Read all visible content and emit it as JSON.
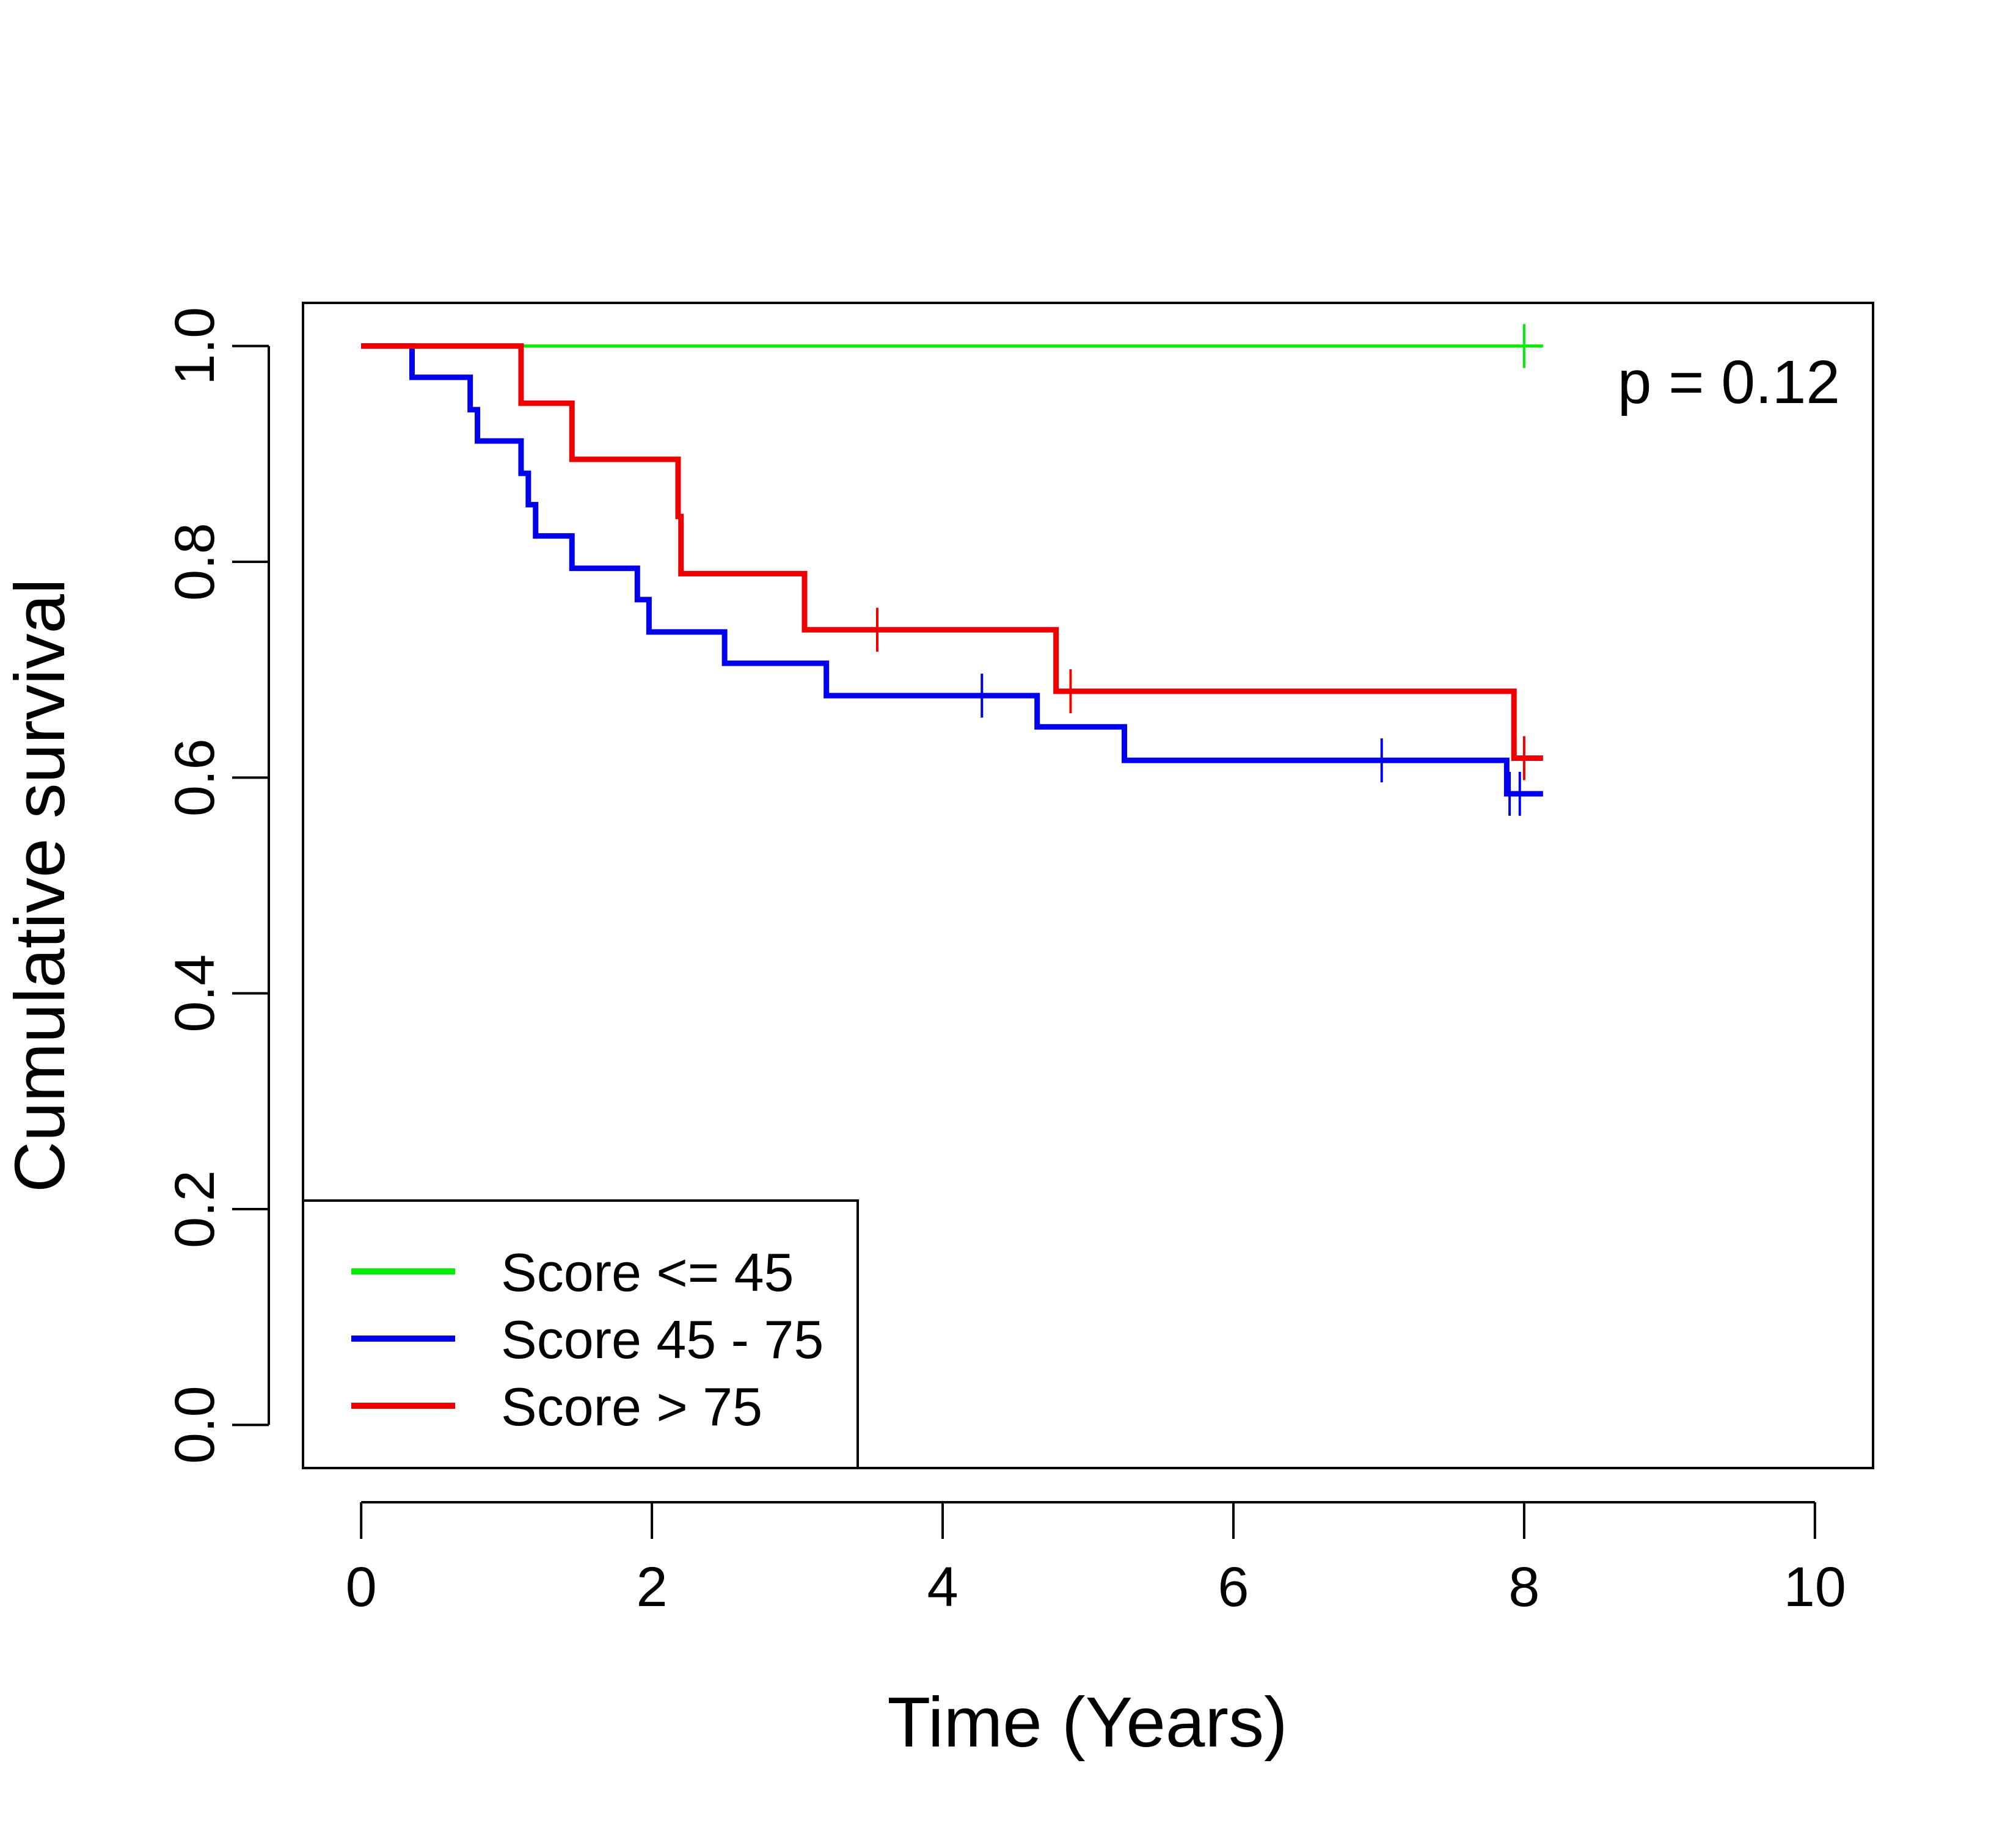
{
  "chart_data": {
    "type": "line",
    "subtype": "kaplan-meier step",
    "xlabel": "Time (Years)",
    "ylabel": "Cumulative survival",
    "xlim": [
      -0.4,
      10.4
    ],
    "ylim": [
      -0.04,
      1.04
    ],
    "xticks": [
      0,
      2,
      4,
      6,
      8,
      10
    ],
    "yticks": [
      0.0,
      0.2,
      0.4,
      0.6,
      0.8,
      1.0
    ],
    "xtick_labels": [
      "0",
      "2",
      "4",
      "6",
      "8",
      "10"
    ],
    "ytick_labels": [
      "0.0",
      "0.2",
      "0.4",
      "0.6",
      "0.8",
      "1.0"
    ],
    "annotation": "p = 0.12",
    "grid": false,
    "legend_position": "bottom-left",
    "series": [
      {
        "name": "Score <= 45",
        "color": "#00ee00",
        "steps": [
          [
            0.0,
            1.0
          ],
          [
            8.13,
            1.0
          ]
        ],
        "censored": [
          [
            8.0,
            1.0
          ]
        ]
      },
      {
        "name": "Score 45 - 75",
        "color": "#0000ee",
        "steps": [
          [
            0.0,
            1.0
          ],
          [
            0.35,
            0.971
          ],
          [
            0.75,
            0.941
          ],
          [
            0.8,
            0.912
          ],
          [
            1.1,
            0.882
          ],
          [
            1.15,
            0.853
          ],
          [
            1.2,
            0.824
          ],
          [
            1.45,
            0.794
          ],
          [
            1.9,
            0.765
          ],
          [
            1.98,
            0.735
          ],
          [
            2.5,
            0.706
          ],
          [
            3.2,
            0.676
          ],
          [
            4.65,
            0.647
          ],
          [
            5.25,
            0.616
          ],
          [
            7.88,
            0.585
          ],
          [
            8.13,
            0.585
          ]
        ],
        "censored": [
          [
            4.27,
            0.676
          ],
          [
            7.02,
            0.616
          ],
          [
            7.9,
            0.585
          ],
          [
            7.97,
            0.585
          ]
        ]
      },
      {
        "name": "Score > 75",
        "color": "#ee0000",
        "steps": [
          [
            0.0,
            1.0
          ],
          [
            1.1,
            0.947
          ],
          [
            1.45,
            0.895
          ],
          [
            2.18,
            0.842
          ],
          [
            2.2,
            0.789
          ],
          [
            3.05,
            0.737
          ],
          [
            4.78,
            0.68
          ],
          [
            7.93,
            0.618
          ],
          [
            8.13,
            0.618
          ]
        ],
        "censored": [
          [
            3.55,
            0.737
          ],
          [
            4.88,
            0.68
          ],
          [
            8.0,
            0.618
          ]
        ]
      }
    ]
  }
}
